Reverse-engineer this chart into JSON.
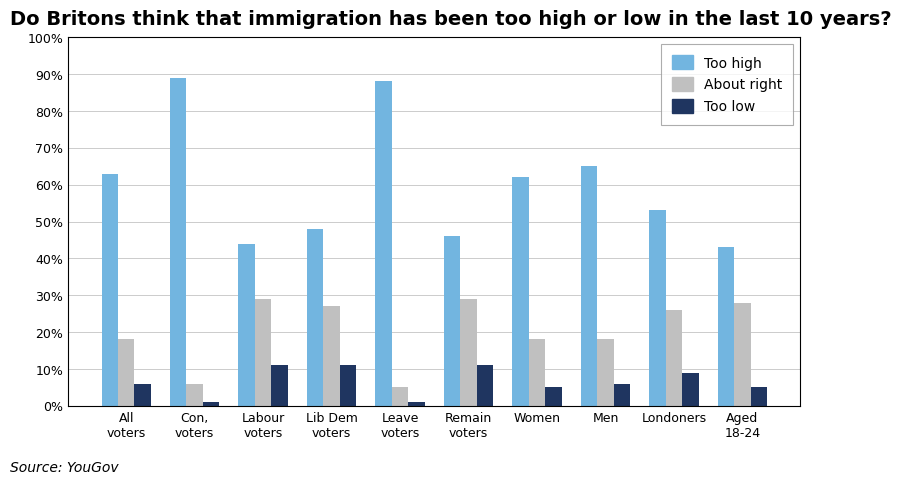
{
  "title": "Do Britons think that immigration has been too high or low in the last 10 years?",
  "source": "Source: YouGov",
  "categories": [
    "All\nvoters",
    "Con,\nvoters",
    "Labour\nvoters",
    "Lib Dem\nvoters",
    "Leave\nvoters",
    "Remain\nvoters",
    "Women",
    "Men",
    "Londoners",
    "Aged\n18-24"
  ],
  "series": {
    "Too high": [
      63,
      89,
      44,
      48,
      88,
      46,
      62,
      65,
      53,
      43
    ],
    "About right": [
      18,
      6,
      29,
      27,
      5,
      29,
      18,
      18,
      26,
      28
    ],
    "Too low": [
      6,
      1,
      11,
      11,
      1,
      11,
      5,
      6,
      9,
      5
    ]
  },
  "colors": {
    "Too high": "#72b5e0",
    "About right": "#c0c0c0",
    "Too low": "#1f3560"
  },
  "ylim": [
    0,
    100
  ],
  "yticks": [
    0,
    10,
    20,
    30,
    40,
    50,
    60,
    70,
    80,
    90,
    100
  ],
  "ytick_labels": [
    "0%",
    "10%",
    "20%",
    "30%",
    "40%",
    "50%",
    "60%",
    "70%",
    "80%",
    "90%",
    "100%"
  ],
  "bar_width": 0.24,
  "legend_position": "upper right",
  "title_fontsize": 14,
  "axis_fontsize": 9,
  "source_fontsize": 10,
  "background_color": "#ffffff",
  "plot_bg_color": "#ffffff",
  "border_color": "#000000"
}
